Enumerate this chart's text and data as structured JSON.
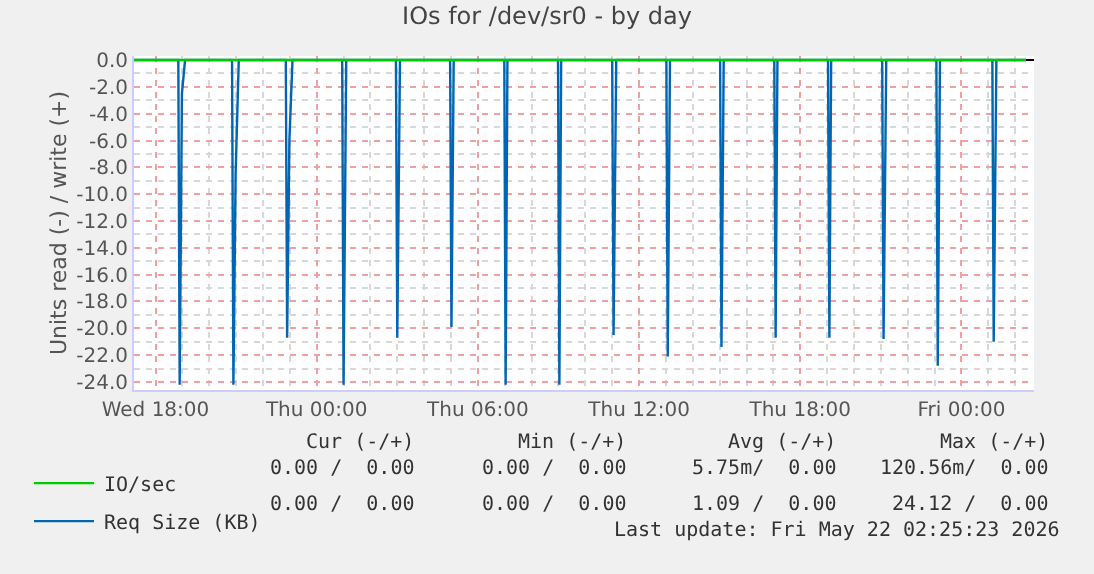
{
  "chart_data": {
    "type": "line",
    "title": "IOs for /dev/sr0 - by day",
    "ylabel": "Units read (-) / write (+)",
    "xlim": [
      "2026-05-20T17:12",
      "2026-05-22T02:42"
    ],
    "xticks": [
      {
        "value": "2026-05-20T18:00",
        "label": "Wed 18:00"
      },
      {
        "value": "2026-05-21T00:00",
        "label": "Thu 00:00"
      },
      {
        "value": "2026-05-21T06:00",
        "label": "Thu 06:00"
      },
      {
        "value": "2026-05-21T12:00",
        "label": "Thu 12:00"
      },
      {
        "value": "2026-05-21T18:00",
        "label": "Thu 18:00"
      },
      {
        "value": "2026-05-22T00:00",
        "label": "Fri 00:00"
      }
    ],
    "ylim": [
      -24.6,
      0.3
    ],
    "yticks": [
      {
        "value": 0,
        "label": "0.0"
      },
      {
        "value": -2,
        "label": "-2.0"
      },
      {
        "value": -4,
        "label": "-4.0"
      },
      {
        "value": -6,
        "label": "-6.0"
      },
      {
        "value": -8,
        "label": "-8.0"
      },
      {
        "value": -10,
        "label": "-10.0"
      },
      {
        "value": -12,
        "label": "-12.0"
      },
      {
        "value": -14,
        "label": "-14.0"
      },
      {
        "value": -16,
        "label": "-16.0"
      },
      {
        "value": -18,
        "label": "-18.0"
      },
      {
        "value": -20,
        "label": "-20.0"
      },
      {
        "value": -22,
        "label": "-22.0"
      },
      {
        "value": -24,
        "label": "-24.0"
      }
    ],
    "grid": true,
    "legend": "bottom left",
    "marker": "none",
    "line_style": "solid",
    "series": [
      {
        "name": "IO/sec",
        "color": "#00cc00",
        "x": [
          "2026-05-20T17:12",
          "2026-05-22T02:24"
        ],
        "values": [
          0,
          0
        ]
      },
      {
        "name": "Req Size (KB)",
        "color": "#0066b3",
        "x": [
          "2026-05-20T17:12",
          "2026-05-20T18:51",
          "2026-05-20T18:54",
          "2026-05-20T18:59",
          "2026-05-20T19:06",
          "2026-05-20T20:51",
          "2026-05-20T20:54",
          "2026-05-20T20:59",
          "2026-05-20T21:06",
          "2026-05-20T22:51",
          "2026-05-20T22:54",
          "2026-05-20T22:59",
          "2026-05-20T23:06",
          "2026-05-21T00:57",
          "2026-05-21T01:00",
          "2026-05-21T01:06",
          "2026-05-21T02:57",
          "2026-05-21T03:00",
          "2026-05-21T03:06",
          "2026-05-21T04:58",
          "2026-05-21T05:01",
          "2026-05-21T05:06",
          "2026-05-21T06:59",
          "2026-05-21T07:02",
          "2026-05-21T07:06",
          "2026-05-21T08:59",
          "2026-05-21T09:02",
          "2026-05-21T09:06",
          "2026-05-21T11:00",
          "2026-05-21T11:03",
          "2026-05-21T11:09",
          "2026-05-21T13:01",
          "2026-05-21T13:04",
          "2026-05-21T13:09",
          "2026-05-21T15:01",
          "2026-05-21T15:04",
          "2026-05-21T15:09",
          "2026-05-21T17:02",
          "2026-05-21T17:05",
          "2026-05-21T17:09",
          "2026-05-21T19:02",
          "2026-05-21T19:05",
          "2026-05-21T19:09",
          "2026-05-21T21:03",
          "2026-05-21T21:06",
          "2026-05-21T21:12",
          "2026-05-21T23:04",
          "2026-05-21T23:07",
          "2026-05-21T23:12",
          "2026-05-22T01:09",
          "2026-05-22T01:12",
          "2026-05-22T01:18",
          "2026-05-22T02:24"
        ],
        "values": [
          0,
          0,
          -24.2,
          -2.5,
          0,
          0,
          -24.2,
          -8.4,
          0,
          0,
          -20.7,
          -6.0,
          0,
          0,
          -24.2,
          0,
          0,
          -20.7,
          0,
          0,
          -19.9,
          0,
          0,
          -24.2,
          0,
          0,
          -24.2,
          0,
          0,
          -20.5,
          0,
          0,
          -22.1,
          0,
          0,
          -21.4,
          0,
          0,
          -20.7,
          0,
          0,
          -20.7,
          0,
          0,
          -20.8,
          0,
          0,
          -22.8,
          0,
          0,
          -21.0,
          0,
          0
        ]
      }
    ],
    "annotations": [
      "Cur (-/+)",
      "Min (-/+)",
      "Avg (-/+)",
      "Max (-/+)",
      "0.00 /  0.00",
      "0.00 /  0.00",
      "5.75m/  0.00",
      "120.56m/  0.00",
      "0.00 /  0.00",
      "0.00 /  0.00",
      "1.09 /  0.00",
      "24.12 /  0.00",
      "Last update: Fri May 22 02:25:23 2026"
    ]
  }
}
